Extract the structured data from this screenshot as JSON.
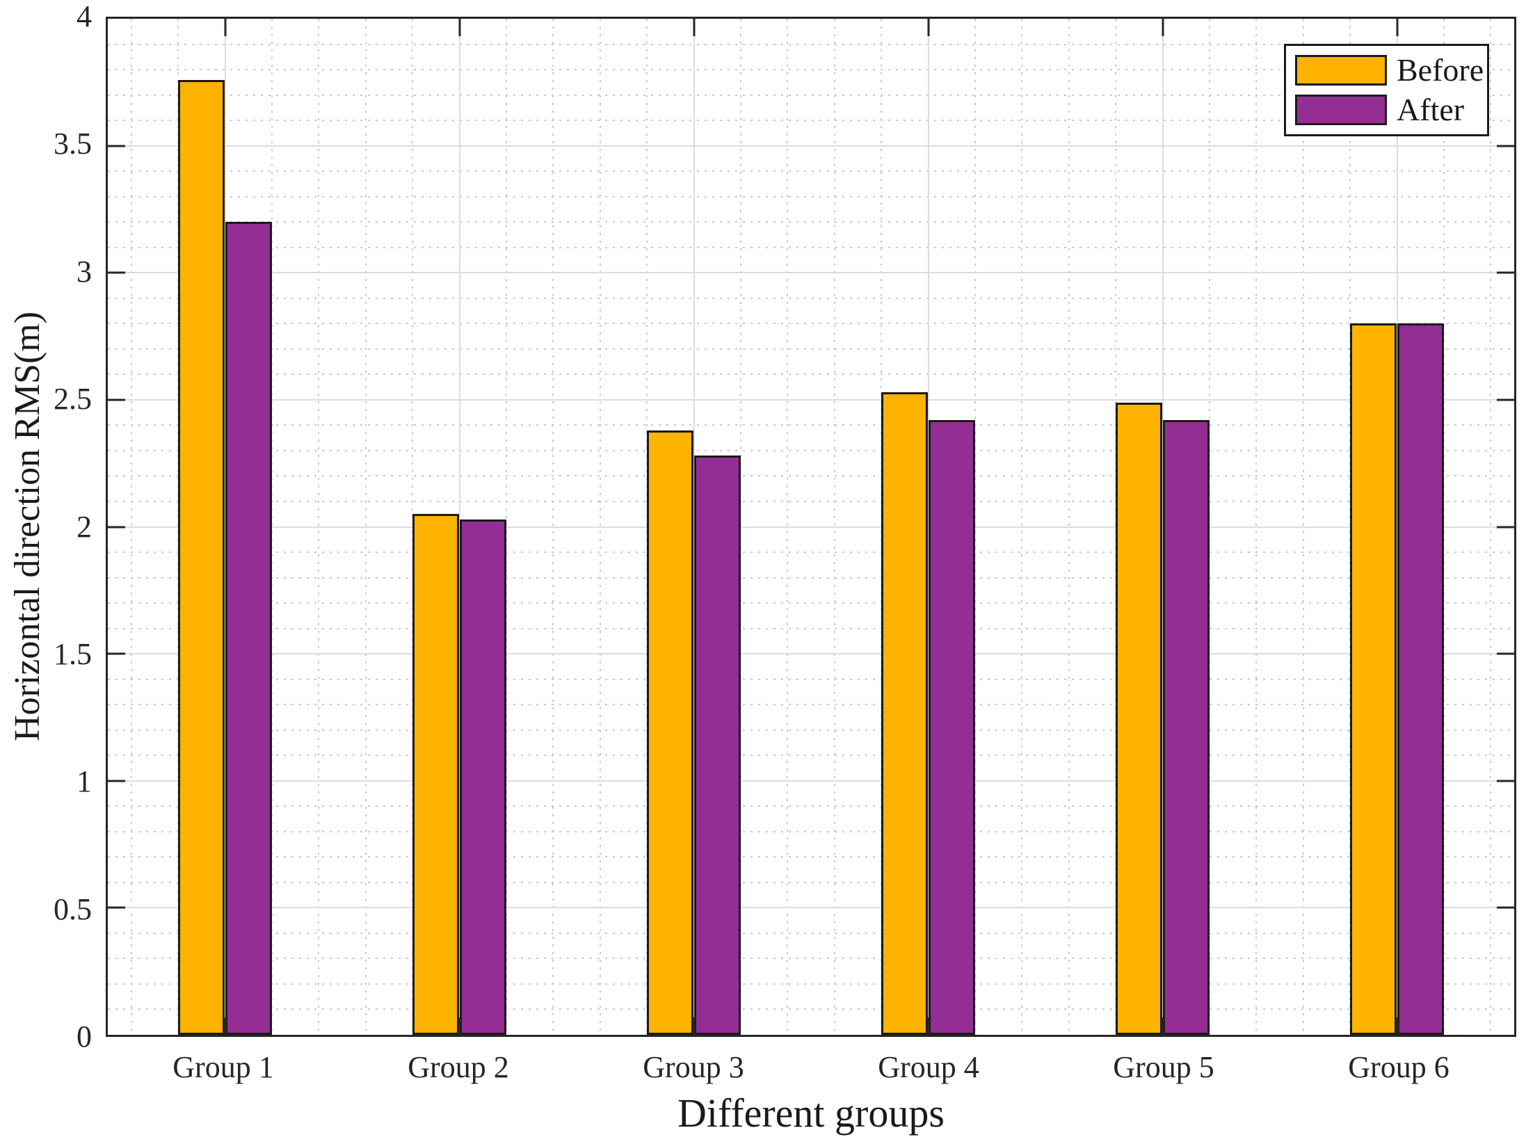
{
  "chart_data": {
    "type": "bar",
    "title": "",
    "categories": [
      "Group 1",
      "Group 2",
      "Group 3",
      "Group 4",
      "Group 5",
      "Group 6"
    ],
    "series": [
      {
        "name": "Before",
        "color": "#FFB301",
        "values": [
          3.76,
          2.05,
          2.38,
          2.53,
          2.49,
          2.8
        ]
      },
      {
        "name": "After",
        "color": "#942E94",
        "values": [
          3.2,
          2.03,
          2.28,
          2.42,
          2.42,
          2.8
        ]
      }
    ],
    "xlabel": "Different groups",
    "ylabel": "Horizontal direction RMS(m)",
    "ylim": [
      0,
      4
    ],
    "ytick_labels": [
      "0",
      "0.5",
      "1",
      "1.5",
      "2",
      "2.5",
      "3",
      "3.5",
      "4"
    ],
    "ytick_values": [
      0,
      0.5,
      1,
      1.5,
      2,
      2.5,
      3,
      3.5,
      4
    ],
    "x_range": [
      0.5,
      6.5
    ],
    "bar_width_units": 0.2,
    "grid": {
      "major_on": true,
      "minor_on": true,
      "y_major_step": 0.5,
      "y_minor_step": 0.1,
      "x_minor_step": 0.2,
      "major_style": "solid",
      "minor_style": "dotted"
    },
    "legend_position": "top-right",
    "colors": {
      "bar_edge": "#1A1A1A",
      "axis_box": "#262626",
      "grid_major": "#DCDCDC",
      "grid_minor": "#C7C7C7",
      "text": "#1F1F1F",
      "plot_background": "#FFFFFF"
    }
  }
}
